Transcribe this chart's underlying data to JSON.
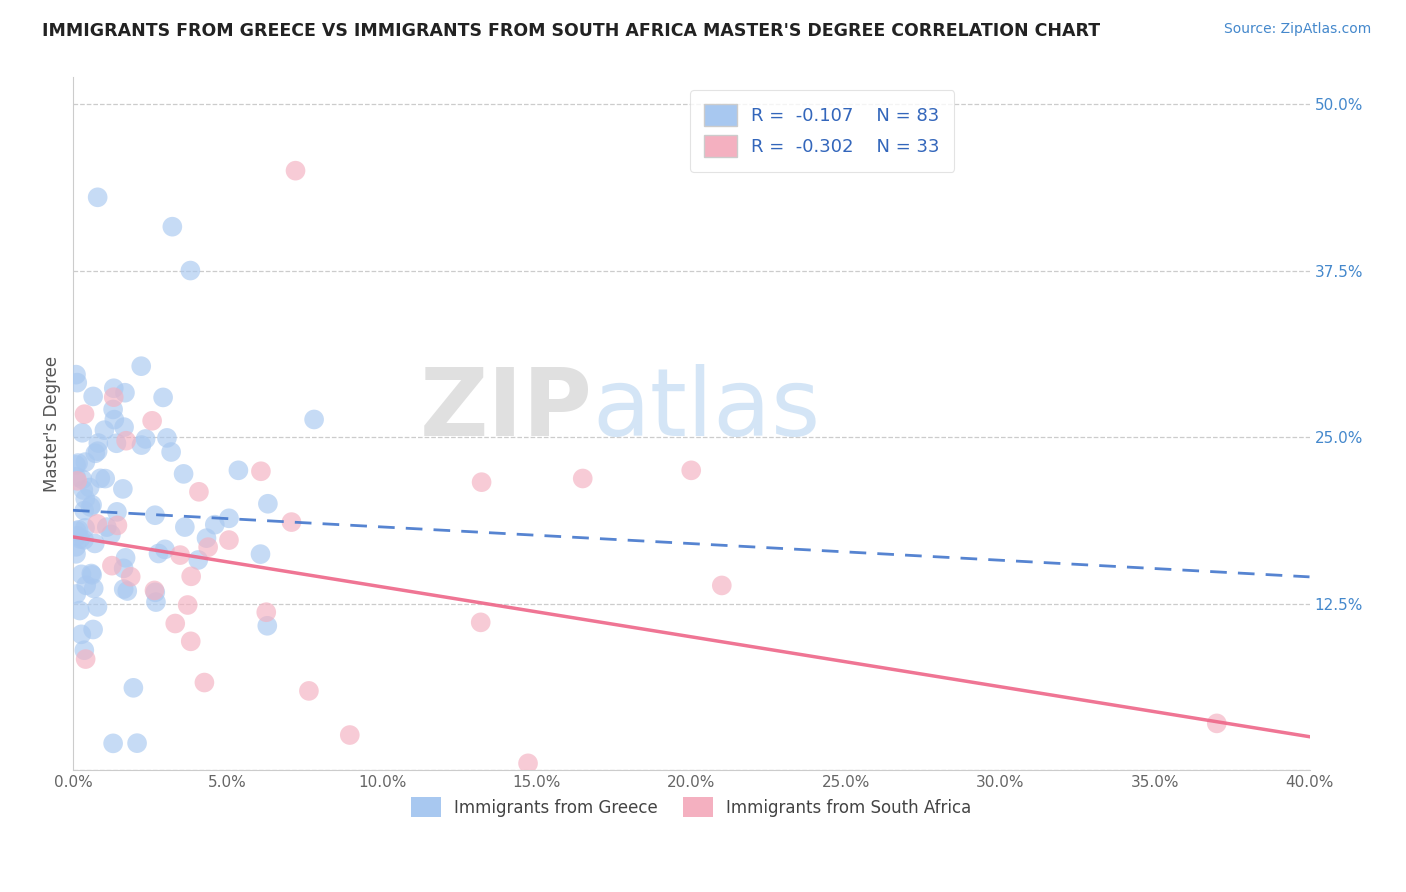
{
  "title": "IMMIGRANTS FROM GREECE VS IMMIGRANTS FROM SOUTH AFRICA MASTER'S DEGREE CORRELATION CHART",
  "source_text": "Source: ZipAtlas.com",
  "ylabel": "Master's Degree",
  "xlim": [
    0.0,
    0.4
  ],
  "ylim": [
    0.0,
    0.52
  ],
  "greece_color": "#a8c8f0",
  "south_africa_color": "#f4b0c0",
  "greece_line_color": "#4477cc",
  "south_africa_line_color": "#ee6688",
  "R_greece": -0.107,
  "N_greece": 83,
  "R_south_africa": -0.302,
  "N_south_africa": 33,
  "watermark_zip": "ZIP",
  "watermark_atlas": "atlas",
  "legend_label_greece": "Immigrants from Greece",
  "legend_label_sa": "Immigrants from South Africa",
  "greece_seed": 42,
  "sa_seed": 7,
  "background_color": "#ffffff",
  "grid_color": "#cccccc",
  "title_color": "#222222",
  "source_color": "#4488cc",
  "right_tick_color": "#4488cc"
}
